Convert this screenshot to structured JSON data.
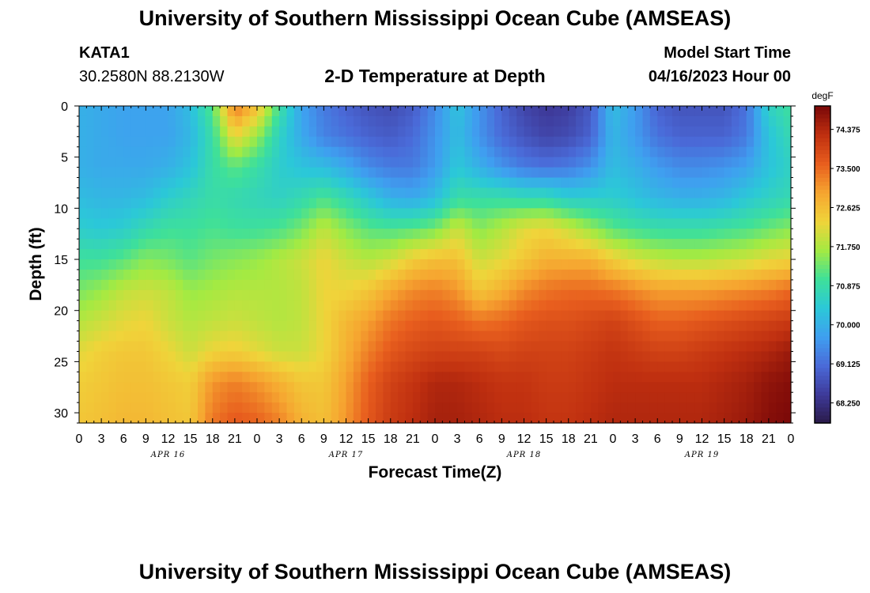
{
  "header": {
    "title": "University of Southern Mississippi Ocean Cube (AMSEAS)",
    "station_id": "KATA1",
    "coordinates": "30.2580N  88.2130W",
    "subtitle": "2-D Temperature at Depth",
    "model_start_label": "Model Start Time",
    "model_start_value": "04/16/2023 Hour 00"
  },
  "footer": {
    "title": "University of Southern Mississippi Ocean Cube (AMSEAS)"
  },
  "chart_data": {
    "type": "heatmap",
    "title": "2-D Temperature at Depth",
    "xlabel": "Forecast Time(Z)",
    "ylabel": "Depth (ft)",
    "x_hours_range": [
      0,
      96
    ],
    "x_tick_step_hours": 3,
    "x_tick_labels": [
      "0",
      "3",
      "6",
      "9",
      "12",
      "15",
      "18",
      "21",
      "0",
      "3",
      "6",
      "9",
      "12",
      "15",
      "18",
      "21",
      "0",
      "3",
      "6",
      "9",
      "12",
      "15",
      "18",
      "21",
      "0",
      "3",
      "6",
      "9",
      "12",
      "15",
      "18",
      "21",
      "0"
    ],
    "date_labels": [
      {
        "text": "APR 16",
        "hour": 12
      },
      {
        "text": "APR 17",
        "hour": 36
      },
      {
        "text": "APR 18",
        "hour": 60
      },
      {
        "text": "APR 19",
        "hour": 84
      }
    ],
    "y_range": [
      0,
      31
    ],
    "y_ticks": [
      0,
      5,
      10,
      15,
      20,
      25,
      30
    ],
    "colorbar": {
      "unit": "degF",
      "min": 67.8,
      "max": 74.9,
      "tick_values": [
        74.375,
        73.5,
        72.625,
        71.75,
        70.875,
        70.0,
        69.125,
        68.25
      ],
      "tick_labels": [
        "74.375",
        "73.500",
        "72.625",
        "71.750",
        "70.875",
        "70.000",
        "69.125",
        "68.250"
      ],
      "colors": [
        "#2a1a48",
        "#3e3a9a",
        "#4a6ad8",
        "#3f9ff0",
        "#2bc8d8",
        "#3ee09a",
        "#a4ea42",
        "#f0d43a",
        "#f6a530",
        "#e85e1e",
        "#c03010",
        "#7a0808"
      ]
    },
    "depth_levels_ft": [
      0,
      3,
      6,
      9,
      12,
      15,
      18,
      21,
      24,
      27,
      31
    ],
    "hour_levels": [
      0,
      3,
      6,
      9,
      12,
      15,
      18,
      21,
      24,
      27,
      30,
      33,
      36,
      39,
      42,
      45,
      48,
      51,
      54,
      57,
      60,
      63,
      66,
      69,
      72,
      75,
      78,
      81,
      84,
      87,
      90,
      93,
      96
    ],
    "temperature_degF": [
      [
        70.0,
        69.9,
        69.8,
        69.8,
        69.8,
        70.2,
        71.2,
        73.4,
        72.6,
        71.0,
        69.8,
        69.3,
        69.0,
        68.8,
        68.7,
        68.9,
        69.5,
        70.3,
        69.6,
        69.0,
        68.6,
        68.4,
        68.5,
        68.9,
        70.2,
        69.7,
        69.0,
        68.8,
        68.8,
        68.8,
        69.2,
        70.6,
        71.0
      ],
      [
        70.0,
        69.9,
        69.8,
        69.8,
        69.8,
        70.1,
        70.9,
        72.3,
        71.6,
        70.6,
        69.9,
        69.4,
        69.2,
        69.0,
        68.9,
        69.1,
        69.6,
        70.2,
        69.6,
        69.1,
        68.8,
        68.6,
        68.7,
        69.0,
        70.1,
        69.7,
        69.2,
        69.0,
        69.0,
        69.0,
        69.3,
        70.3,
        70.8
      ],
      [
        70.0,
        69.9,
        69.9,
        69.9,
        70.0,
        70.3,
        70.9,
        71.2,
        70.9,
        70.5,
        70.3,
        70.2,
        69.9,
        69.5,
        69.3,
        69.3,
        69.7,
        70.4,
        70.0,
        69.6,
        69.3,
        69.2,
        69.3,
        69.6,
        70.2,
        70.0,
        69.7,
        69.5,
        69.5,
        69.6,
        69.8,
        70.3,
        70.6
      ],
      [
        70.2,
        70.1,
        70.1,
        70.2,
        70.5,
        70.7,
        70.9,
        70.8,
        70.7,
        70.6,
        70.8,
        71.1,
        70.8,
        70.4,
        70.0,
        69.9,
        70.2,
        70.9,
        70.9,
        70.9,
        70.8,
        70.8,
        70.5,
        70.5,
        70.5,
        70.3,
        70.1,
        70.0,
        70.0,
        70.1,
        70.4,
        70.6,
        70.8
      ],
      [
        70.5,
        70.4,
        70.5,
        70.8,
        71.0,
        71.0,
        71.1,
        71.0,
        71.0,
        71.1,
        71.4,
        71.9,
        71.5,
        71.2,
        71.1,
        71.2,
        71.4,
        72.0,
        71.5,
        71.8,
        72.2,
        72.3,
        72.0,
        71.6,
        71.2,
        71.0,
        70.9,
        70.9,
        70.9,
        71.0,
        71.1,
        71.3,
        71.5
      ],
      [
        71.0,
        71.0,
        71.2,
        71.5,
        71.4,
        71.2,
        71.4,
        71.5,
        71.6,
        71.8,
        72.0,
        72.3,
        72.0,
        71.8,
        72.0,
        72.4,
        72.6,
        72.6,
        72.0,
        72.2,
        72.5,
        72.8,
        72.8,
        72.8,
        72.4,
        72.1,
        71.9,
        71.8,
        71.8,
        71.9,
        72.0,
        72.2,
        72.3
      ],
      [
        71.4,
        71.6,
        71.9,
        72.0,
        71.9,
        71.6,
        71.7,
        71.8,
        71.8,
        71.8,
        71.9,
        72.3,
        72.3,
        72.5,
        72.9,
        73.2,
        73.3,
        73.1,
        72.5,
        72.8,
        73.2,
        73.4,
        73.5,
        73.5,
        73.4,
        73.2,
        73.0,
        73.0,
        73.0,
        73.1,
        73.2,
        73.3,
        73.5
      ],
      [
        71.8,
        72.0,
        72.2,
        72.3,
        72.0,
        71.8,
        71.9,
        72.0,
        71.9,
        71.8,
        71.9,
        72.3,
        72.7,
        73.0,
        73.4,
        73.6,
        73.7,
        73.6,
        73.4,
        73.5,
        73.7,
        73.8,
        73.8,
        73.9,
        74.0,
        73.8,
        73.6,
        73.6,
        73.7,
        73.8,
        73.9,
        74.0,
        74.1
      ],
      [
        72.2,
        72.4,
        72.5,
        72.5,
        72.3,
        72.0,
        72.3,
        72.4,
        72.2,
        72.0,
        72.0,
        72.3,
        72.8,
        73.3,
        73.7,
        73.9,
        74.0,
        74.0,
        74.0,
        73.9,
        74.0,
        74.0,
        74.0,
        74.1,
        74.2,
        74.1,
        74.0,
        74.0,
        74.1,
        74.2,
        74.3,
        74.4,
        74.6
      ],
      [
        72.4,
        72.5,
        72.6,
        72.6,
        72.5,
        72.4,
        73.1,
        73.3,
        73.1,
        72.8,
        72.5,
        72.5,
        73.0,
        73.6,
        74.0,
        74.2,
        74.4,
        74.4,
        74.3,
        74.2,
        74.2,
        74.1,
        74.1,
        74.2,
        74.3,
        74.3,
        74.3,
        74.3,
        74.3,
        74.4,
        74.5,
        74.7,
        74.8
      ],
      [
        72.5,
        72.6,
        72.7,
        72.7,
        72.6,
        72.5,
        73.4,
        73.7,
        73.6,
        73.3,
        72.8,
        72.6,
        73.1,
        73.7,
        74.1,
        74.3,
        74.5,
        74.5,
        74.4,
        74.3,
        74.3,
        74.2,
        74.2,
        74.3,
        74.4,
        74.4,
        74.4,
        74.4,
        74.4,
        74.5,
        74.6,
        74.8,
        74.9
      ]
    ]
  }
}
